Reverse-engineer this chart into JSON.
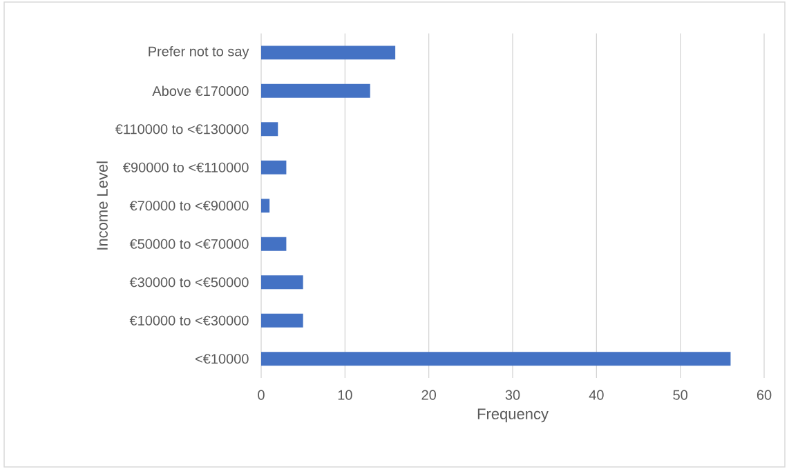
{
  "chart_data": {
    "type": "bar",
    "orientation": "horizontal",
    "xlabel": "Frequency",
    "ylabel": "Income Level",
    "categories": [
      "Prefer not to say",
      "Above €170000",
      "€110000 to <€130000",
      "€90000 to <€110000",
      "€70000 to <€90000",
      "€50000 to <€70000",
      "€30000 to <€50000",
      "€10000 to <€30000",
      "<€10000"
    ],
    "values": [
      16,
      13,
      2,
      3,
      1,
      3,
      5,
      5,
      56
    ],
    "color": "#4472c4",
    "xlim": [
      0,
      60
    ],
    "xticks": [
      0,
      10,
      20,
      30,
      40,
      50,
      60
    ],
    "grid": "x"
  }
}
